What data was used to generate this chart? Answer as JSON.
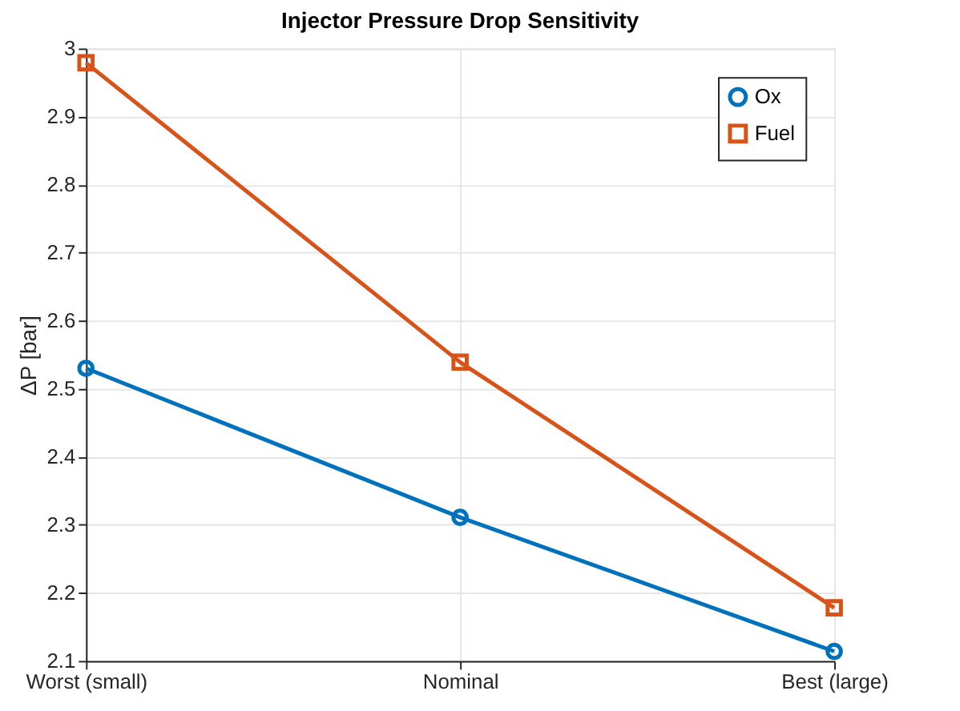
{
  "chart_data": {
    "type": "line",
    "title": "Injector Pressure Drop Sensitivity",
    "ylabel": "ΔP [bar]",
    "categories": [
      "Worst (small)",
      "Nominal",
      "Best (large)"
    ],
    "series": [
      {
        "name": "Ox",
        "color": "#0072bd",
        "marker": "circle",
        "values": [
          2.53,
          2.311,
          2.114
        ]
      },
      {
        "name": "Fuel",
        "color": "#d95319",
        "marker": "square",
        "values": [
          2.979,
          2.539,
          2.178
        ]
      }
    ],
    "ylim": [
      2.1,
      3
    ],
    "yticks": [
      2.1,
      2.2,
      2.3,
      2.4,
      2.5,
      2.6,
      2.7,
      2.8,
      2.9,
      {
        "value": 3,
        "label": "3"
      }
    ],
    "grid": true,
    "legend": "top right",
    "line_style": "solid"
  }
}
